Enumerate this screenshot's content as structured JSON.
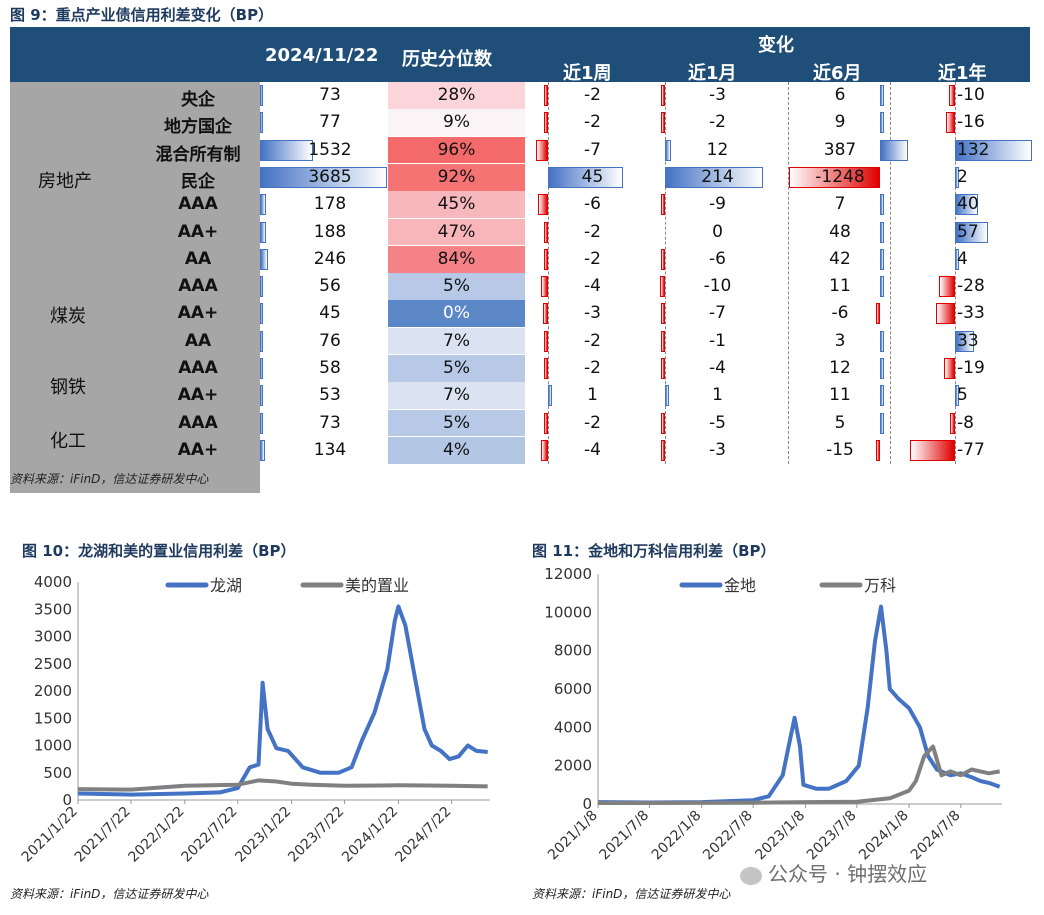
{
  "fig9": {
    "title": "图 9：重点产业债信用利差变化（BP）",
    "source": "资料来源：iFinD，信达证券研发中心",
    "headers": {
      "date": "2024/11/22",
      "pct": "历史分位数",
      "change": "变化",
      "w1": "近1周",
      "m1": "近1月",
      "m6": "近6月",
      "y1": "近1年"
    },
    "groups": [
      "房地产",
      "煤炭",
      "钢铁",
      "化工"
    ],
    "rows": [
      {
        "sub": "央企",
        "val": "73",
        "pct": "28%",
        "w1": "-2",
        "m1": "-3",
        "m6": "6",
        "y1": "-10"
      },
      {
        "sub": "地方国企",
        "val": "77",
        "pct": "9%",
        "w1": "-2",
        "m1": "-2",
        "m6": "9",
        "y1": "-16"
      },
      {
        "sub": "混合所有制",
        "val": "1532",
        "pct": "96%",
        "w1": "-7",
        "m1": "12",
        "m6": "387",
        "y1": "132"
      },
      {
        "sub": "民企",
        "val": "3685",
        "pct": "92%",
        "w1": "45",
        "m1": "214",
        "m6": "-1248",
        "y1": "2"
      },
      {
        "sub": "AAA",
        "val": "178",
        "pct": "45%",
        "w1": "-6",
        "m1": "-9",
        "m6": "7",
        "y1": "40"
      },
      {
        "sub": "AA+",
        "val": "188",
        "pct": "47%",
        "w1": "-2",
        "m1": "0",
        "m6": "48",
        "y1": "57"
      },
      {
        "sub": "AA",
        "val": "246",
        "pct": "84%",
        "w1": "-2",
        "m1": "-6",
        "m6": "42",
        "y1": "4"
      },
      {
        "sub": "AAA",
        "val": "56",
        "pct": "5%",
        "w1": "-4",
        "m1": "-10",
        "m6": "11",
        "y1": "-28"
      },
      {
        "sub": "AA+",
        "val": "45",
        "pct": "0%",
        "w1": "-3",
        "m1": "-7",
        "m6": "-6",
        "y1": "-33"
      },
      {
        "sub": "AA",
        "val": "76",
        "pct": "7%",
        "w1": "-2",
        "m1": "-1",
        "m6": "3",
        "y1": "33"
      },
      {
        "sub": "AAA",
        "val": "58",
        "pct": "5%",
        "w1": "-2",
        "m1": "-4",
        "m6": "12",
        "y1": "-19"
      },
      {
        "sub": "AA+",
        "val": "53",
        "pct": "7%",
        "w1": "1",
        "m1": "1",
        "m6": "11",
        "y1": "5"
      },
      {
        "sub": "AAA",
        "val": "73",
        "pct": "5%",
        "w1": "-2",
        "m1": "-5",
        "m6": "5",
        "y1": "-8"
      },
      {
        "sub": "AA+",
        "val": "134",
        "pct": "4%",
        "w1": "-4",
        "m1": "-3",
        "m6": "-15",
        "y1": "-77"
      }
    ]
  },
  "fig10": {
    "title": "图 10：龙湖和美的置业信用利差（BP）",
    "source": "资料来源：iFinD，信达证券研发中心"
  },
  "fig11": {
    "title": "图 11：金地和万科信用利差（BP）",
    "source": "资料来源：iFinD，信达证券研发中心"
  },
  "watermark": "公众号 · 钟摆效应",
  "chart_data": [
    {
      "type": "table",
      "title": "图 9：重点产业债信用利差变化（BP）",
      "columns": [
        "2024/11/22",
        "历史分位数",
        "近1周",
        "近1月",
        "近6月",
        "近1年"
      ],
      "values_2024_11_22": [
        73,
        77,
        1532,
        3685,
        178,
        188,
        246,
        56,
        45,
        76,
        58,
        53,
        73,
        134
      ],
      "percentile": [
        28,
        9,
        96,
        92,
        45,
        47,
        84,
        5,
        0,
        7,
        5,
        7,
        5,
        4
      ],
      "w1": [
        -2,
        -2,
        -7,
        45,
        -6,
        -2,
        -2,
        -4,
        -3,
        -2,
        -2,
        1,
        -2,
        -4
      ],
      "m1": [
        -3,
        -2,
        12,
        214,
        -9,
        0,
        -6,
        -10,
        -7,
        -1,
        -4,
        1,
        -5,
        -3
      ],
      "m6": [
        6,
        9,
        387,
        -1248,
        7,
        48,
        42,
        11,
        -6,
        3,
        12,
        11,
        5,
        -15
      ],
      "y1": [
        -10,
        -16,
        132,
        2,
        40,
        57,
        4,
        -28,
        -33,
        33,
        -19,
        5,
        -8,
        -77
      ]
    },
    {
      "type": "line",
      "title": "图 10：龙湖和美的置业信用利差（BP）",
      "x_tick_labels": [
        "2021/1/22",
        "2021/7/22",
        "2022/1/22",
        "2022/7/22",
        "2023/1/22",
        "2023/7/22",
        "2024/1/22",
        "2024/7/22"
      ],
      "ylim": [
        0,
        4000
      ],
      "y_ticks": [
        0,
        500,
        1000,
        1500,
        2000,
        2500,
        3000,
        3500,
        4000
      ],
      "legend": "top",
      "series": [
        {
          "name": "龙湖",
          "color": "#4472c4",
          "x": [
            "2021/1/22",
            "2021/7/22",
            "2022/1/22",
            "2022/5/22",
            "2022/7/22",
            "2022/9/1",
            "2022/10/1",
            "2022/10/15",
            "2022/11/1",
            "2022/12/1",
            "2023/1/10",
            "2023/3/1",
            "2023/5/1",
            "2023/7/1",
            "2023/8/15",
            "2023/9/20",
            "2023/11/1",
            "2023/12/15",
            "2024/1/10",
            "2024/1/22",
            "2024/2/15",
            "2024/3/20",
            "2024/4/20",
            "2024/5/15",
            "2024/6/15",
            "2024/7/15",
            "2024/8/15",
            "2024/9/15",
            "2024/10/15",
            "2024/11/22"
          ],
          "y": [
            120,
            100,
            120,
            140,
            220,
            600,
            650,
            2150,
            1300,
            950,
            900,
            600,
            500,
            500,
            600,
            1100,
            1600,
            2400,
            3300,
            3550,
            3200,
            2200,
            1300,
            1000,
            900,
            750,
            800,
            1000,
            900,
            880
          ]
        },
        {
          "name": "美的置业",
          "color": "#808080",
          "x": [
            "2021/1/22",
            "2021/7/22",
            "2022/1/22",
            "2022/7/22",
            "2022/10/1",
            "2022/12/1",
            "2023/1/22",
            "2023/4/1",
            "2023/7/22",
            "2024/1/22",
            "2024/7/22",
            "2024/11/22"
          ],
          "y": [
            200,
            190,
            260,
            280,
            360,
            340,
            300,
            280,
            260,
            270,
            260,
            250
          ]
        }
      ]
    },
    {
      "type": "line",
      "title": "图 11：金地和万科信用利差（BP）",
      "x_tick_labels": [
        "2021/1/8",
        "2021/7/8",
        "2022/1/8",
        "2022/7/8",
        "2023/1/8",
        "2023/7/8",
        "2024/1/8",
        "2024/7/8"
      ],
      "ylim": [
        0,
        12000
      ],
      "y_ticks": [
        0,
        2000,
        4000,
        6000,
        8000,
        10000,
        12000
      ],
      "legend": "top",
      "series": [
        {
          "name": "金地",
          "color": "#4472c4",
          "x": [
            "2021/1/8",
            "2021/7/8",
            "2022/1/8",
            "2022/7/8",
            "2022/9/1",
            "2022/10/20",
            "2022/11/10",
            "2022/12/1",
            "2022/12/20",
            "2023/1/1",
            "2023/2/15",
            "2023/4/1",
            "2023/6/1",
            "2023/7/15",
            "2023/8/15",
            "2023/9/10",
            "2023/10/1",
            "2023/10/20",
            "2023/11/1",
            "2023/12/1",
            "2024/1/8",
            "2024/2/15",
            "2024/3/15",
            "2024/4/15",
            "2024/6/1",
            "2024/7/8",
            "2024/8/15",
            "2024/9/15",
            "2024/10/15",
            "2024/11/22"
          ],
          "y": [
            100,
            80,
            100,
            200,
            400,
            1500,
            3000,
            4500,
            3000,
            1000,
            800,
            800,
            1200,
            2000,
            5000,
            8500,
            10300,
            8000,
            6000,
            5500,
            5000,
            4000,
            2500,
            1800,
            1500,
            1600,
            1400,
            1200,
            1100,
            900
          ]
        },
        {
          "name": "万科",
          "color": "#808080",
          "x": [
            "2021/1/8",
            "2022/7/8",
            "2023/1/8",
            "2023/7/8",
            "2023/11/1",
            "2024/1/8",
            "2024/2/1",
            "2024/3/1",
            "2024/4/1",
            "2024/5/1",
            "2024/6/1",
            "2024/7/8",
            "2024/8/15",
            "2024/9/15",
            "2024/10/15",
            "2024/11/22"
          ],
          "y": [
            50,
            60,
            100,
            120,
            300,
            700,
            1200,
            2500,
            3000,
            1500,
            1700,
            1500,
            1800,
            1700,
            1600,
            1700
          ]
        }
      ]
    }
  ]
}
